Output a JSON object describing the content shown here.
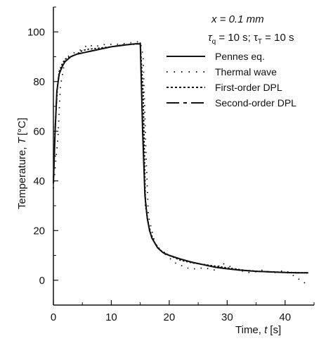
{
  "chart_data": {
    "type": "line",
    "xlabel_prefix": "Time, ",
    "xlabel_var": "t",
    "xlabel_unit": "[s]",
    "ylabel_prefix": "Temperature, ",
    "ylabel_var": "T",
    "ylabel_unit": "[°C]",
    "xlim": [
      0,
      45
    ],
    "ylim": [
      -10,
      110
    ],
    "xticks": [
      0,
      10,
      20,
      30,
      40
    ],
    "yticks": [
      0,
      20,
      40,
      60,
      80,
      100
    ],
    "grid": false,
    "legend_position": "top-right",
    "annotation_line1": "x = 0.1 mm",
    "annotation_line2_a": "τ",
    "annotation_line2_a_sub": "q",
    "annotation_line2_b": " = 10 s; τ",
    "annotation_line2_b_sub": "T",
    "annotation_line2_c": " = 10 s",
    "series": [
      {
        "name": "Pennes eq.",
        "style": "solid",
        "x": [
          0,
          0.3,
          0.6,
          1.0,
          1.5,
          2,
          3,
          4,
          5,
          6,
          8,
          10,
          12,
          14,
          15,
          15.4,
          15.8,
          16.2,
          16.6,
          17,
          17.5,
          18,
          19,
          20,
          22,
          24,
          26,
          28,
          30,
          32,
          35,
          38,
          40,
          42,
          44
        ],
        "y": [
          39,
          60,
          76,
          83,
          86,
          88,
          90,
          91,
          91.5,
          92,
          93,
          94,
          94.6,
          95.2,
          95.2,
          60,
          34,
          25,
          20,
          17,
          15,
          13,
          11,
          10,
          8.5,
          7.2,
          6.2,
          5.2,
          4.6,
          4.1,
          3.6,
          3.3,
          3.1,
          3.0,
          3.0
        ]
      },
      {
        "name": "Thermal wave",
        "style": "dotted-sparse",
        "x": [
          0,
          0.4,
          0.8,
          1.2,
          1.5,
          2,
          3,
          4,
          5,
          6,
          7,
          9,
          11,
          13,
          14.5,
          15,
          15.5,
          16,
          16.4,
          16.8,
          17.5,
          18.5,
          20,
          21,
          23,
          24,
          26,
          28,
          29,
          30,
          32,
          34,
          36,
          38,
          40,
          44
        ],
        "y": [
          37,
          48,
          58,
          78,
          82,
          89,
          91,
          92,
          93,
          95,
          94,
          95,
          95,
          95.5,
          96,
          96,
          90,
          50,
          26,
          22,
          15,
          12,
          9,
          7,
          5,
          4.5,
          5,
          4,
          7,
          6,
          4,
          3,
          4,
          3,
          4,
          -2
        ]
      },
      {
        "name": "First-order DPL",
        "style": "dotted",
        "x": [
          0,
          0.3,
          0.7,
          1.0,
          1.5,
          2,
          3,
          4,
          5,
          6,
          8,
          10,
          12,
          14,
          15,
          15.5,
          15.9,
          16.3,
          16.8,
          17.5,
          18.5,
          20,
          22,
          24,
          27,
          30,
          33,
          36,
          40,
          44
        ],
        "y": [
          40,
          62,
          78,
          84,
          87,
          89,
          90,
          91,
          92.5,
          93,
          93.5,
          94,
          94.8,
          95,
          95.5,
          75,
          30,
          24,
          19,
          15,
          12,
          10,
          8,
          7,
          6,
          5,
          4,
          3.5,
          3.2,
          3.0
        ]
      },
      {
        "name": "Second-order DPL",
        "style": "dash-dot",
        "x": [
          0,
          0.3,
          0.6,
          1.0,
          1.5,
          2,
          3,
          4,
          5,
          6,
          8,
          10,
          12,
          14,
          15,
          15.4,
          15.8,
          16.2,
          16.6,
          17,
          17.5,
          18,
          19,
          20,
          22,
          24,
          26,
          28,
          30,
          32,
          35,
          38,
          40,
          42,
          44
        ],
        "y": [
          39,
          61,
          76,
          83,
          86,
          88,
          90,
          91,
          91.5,
          92,
          93,
          94,
          94.6,
          95.2,
          95.2,
          62,
          35,
          25,
          20,
          17,
          15,
          13,
          11,
          10,
          8.5,
          7.2,
          6.2,
          5.2,
          4.6,
          4.1,
          3.6,
          3.3,
          3.1,
          3.0,
          3.0
        ]
      }
    ]
  }
}
